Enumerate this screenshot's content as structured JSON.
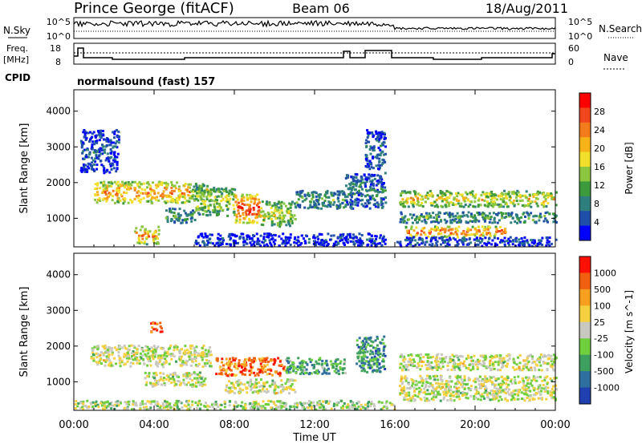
{
  "header": {
    "site": "Prince George (fitACF)",
    "beam": "Beam 06",
    "date": "18/Aug/2011"
  },
  "top_panels": {
    "nsky_label": "N.Sky",
    "nsky_ticks": [
      "10^5",
      "10^0"
    ],
    "nsearch_label": "N.Search",
    "nsearch_ticks": [
      "10^5",
      "10^0"
    ],
    "freq_label_1": "Freq.",
    "freq_label_2": "[MHz]",
    "freq_ticks": [
      "18",
      "8"
    ],
    "nave_label": "Nave",
    "nave_ticks": [
      "60",
      "0"
    ],
    "cpid_label": "CPID",
    "cpid_value": "normalsound (fast) 157"
  },
  "chart_data": [
    {
      "type": "heatmap",
      "name": "power",
      "ylabel": "Slant Range [km]",
      "ylim": [
        200,
        4600
      ],
      "yticks": [
        "1000",
        "2000",
        "3000",
        "4000"
      ],
      "colorbar_label": "Power [dB]",
      "colorbar_ticks": [
        "28",
        "24",
        "20",
        "16",
        "12",
        "8",
        "4"
      ],
      "colorbar_colors": [
        "#0000ff",
        "#1f4fa8",
        "#2f7f7f",
        "#3c9a3c",
        "#8cc63f",
        "#f0e02c",
        "#f7b21a",
        "#f27c1c",
        "#f0461c",
        "#ff0000"
      ],
      "bands": [
        {
          "t0": 1.0,
          "t1": 5.8,
          "r0": 1450,
          "r1": 2050,
          "level": 0.75
        },
        {
          "t0": 5.8,
          "t1": 6.8,
          "r0": 1500,
          "r1": 2000,
          "level": 0.55
        },
        {
          "t0": 0.3,
          "t1": 2.2,
          "r0": 2300,
          "r1": 3500,
          "level": 0.15
        },
        {
          "t0": 4.5,
          "t1": 6.0,
          "r0": 900,
          "r1": 1300,
          "level": 0.35
        },
        {
          "t0": 6.0,
          "t1": 8.0,
          "r0": 1100,
          "r1": 1900,
          "level": 0.5
        },
        {
          "t0": 8.0,
          "t1": 9.2,
          "r0": 900,
          "r1": 1700,
          "level": 0.95
        },
        {
          "t0": 9.2,
          "t1": 11.0,
          "r0": 800,
          "r1": 1500,
          "level": 0.55
        },
        {
          "t0": 11.0,
          "t1": 13.5,
          "r0": 1300,
          "r1": 1800,
          "level": 0.35
        },
        {
          "t0": 13.5,
          "t1": 15.5,
          "r0": 1300,
          "r1": 2300,
          "level": 0.25
        },
        {
          "t0": 14.5,
          "t1": 15.5,
          "r0": 2400,
          "r1": 3500,
          "level": 0.2
        },
        {
          "t0": 3.0,
          "t1": 4.2,
          "r0": 300,
          "r1": 800,
          "level": 0.7
        },
        {
          "t0": 16.2,
          "t1": 24.0,
          "r0": 1350,
          "r1": 1800,
          "level": 0.6
        },
        {
          "t0": 16.2,
          "t1": 24.0,
          "r0": 900,
          "r1": 1200,
          "level": 0.35
        },
        {
          "t0": 16.5,
          "t1": 21.5,
          "r0": 500,
          "r1": 800,
          "level": 0.8
        },
        {
          "t0": 6.0,
          "t1": 15.5,
          "r0": 250,
          "r1": 600,
          "level": 0.12
        },
        {
          "t0": 16.0,
          "t1": 24.0,
          "r0": 250,
          "r1": 500,
          "level": 0.15
        }
      ]
    },
    {
      "type": "heatmap",
      "name": "velocity",
      "ylabel": "Slant Range [km]",
      "ylim": [
        200,
        4600
      ],
      "yticks": [
        "1000",
        "2000",
        "3000",
        "4000"
      ],
      "xlabel": "Time UT",
      "xlim": [
        0,
        24
      ],
      "xticks": [
        "00:00",
        "04:00",
        "08:00",
        "12:00",
        "16:00",
        "20:00",
        "00:00"
      ],
      "colorbar_label": "Velocity [m s^-1]",
      "colorbar_ticks": [
        "1000",
        "500",
        "100",
        "25",
        "-25",
        "-100",
        "-500",
        "-1000"
      ],
      "colorbar_colors": [
        "#2040b0",
        "#2f6fa0",
        "#3f9f5f",
        "#6fcf3f",
        "#c8c8c0",
        "#f5d040",
        "#f7a020",
        "#f06010",
        "#ff1000"
      ],
      "bands": [
        {
          "t0": 0.8,
          "t1": 6.8,
          "r0": 1450,
          "r1": 2050,
          "level": 0.5
        },
        {
          "t0": 3.5,
          "t1": 6.5,
          "r0": 900,
          "r1": 1300,
          "level": 0.5
        },
        {
          "t0": 7.0,
          "t1": 10.5,
          "r0": 1200,
          "r1": 1700,
          "level": 0.8
        },
        {
          "t0": 10.5,
          "t1": 13.5,
          "r0": 1250,
          "r1": 1700,
          "level": 0.3
        },
        {
          "t0": 7.5,
          "t1": 11.0,
          "r0": 700,
          "r1": 1100,
          "level": 0.5
        },
        {
          "t0": 14.0,
          "t1": 15.5,
          "r0": 1300,
          "r1": 2300,
          "level": 0.25
        },
        {
          "t0": 16.2,
          "t1": 24.0,
          "r0": 1350,
          "r1": 1800,
          "level": 0.5
        },
        {
          "t0": 16.2,
          "t1": 24.0,
          "r0": 500,
          "r1": 1200,
          "level": 0.5
        },
        {
          "t0": 0.0,
          "t1": 16.0,
          "r0": 250,
          "r1": 500,
          "level": 0.45
        },
        {
          "t0": 3.8,
          "t1": 4.4,
          "r0": 2400,
          "r1": 2700,
          "level": 0.85
        }
      ]
    }
  ]
}
